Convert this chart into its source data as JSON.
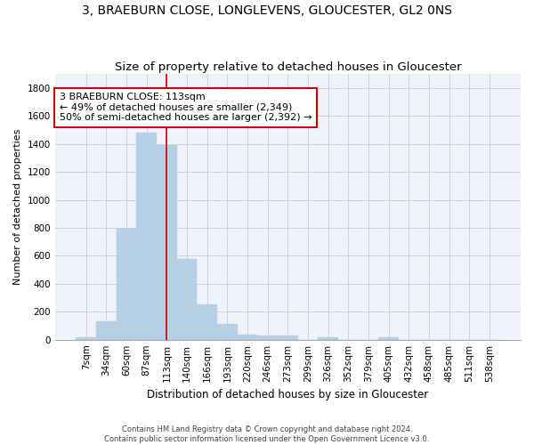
{
  "title": "3, BRAEBURN CLOSE, LONGLEVENS, GLOUCESTER, GL2 0NS",
  "subtitle": "Size of property relative to detached houses in Gloucester",
  "xlabel": "Distribution of detached houses by size in Gloucester",
  "ylabel": "Number of detached properties",
  "categories": [
    "7sqm",
    "34sqm",
    "60sqm",
    "87sqm",
    "113sqm",
    "140sqm",
    "166sqm",
    "193sqm",
    "220sqm",
    "246sqm",
    "273sqm",
    "299sqm",
    "326sqm",
    "352sqm",
    "379sqm",
    "405sqm",
    "432sqm",
    "458sqm",
    "485sqm",
    "511sqm",
    "538sqm"
  ],
  "values": [
    15,
    130,
    795,
    1480,
    1390,
    575,
    250,
    115,
    35,
    30,
    30,
    0,
    20,
    0,
    0,
    15,
    0,
    0,
    0,
    0,
    0
  ],
  "bar_color": "#b8cfe8",
  "bar_edgecolor": "#b8cfe8",
  "bar_width": 1.0,
  "vline_x": 4,
  "vline_color": "#cc0000",
  "annotation_text": "3 BRAEBURN CLOSE: 113sqm\n← 49% of detached houses are smaller (2,349)\n50% of semi-detached houses are larger (2,392) →",
  "annotation_box_edgecolor": "#cc0000",
  "annotation_box_facecolor": "#ffffff",
  "ylim": [
    0,
    1900
  ],
  "yticks": [
    0,
    200,
    400,
    600,
    800,
    1000,
    1200,
    1400,
    1600,
    1800
  ],
  "grid_color": "#cccccc",
  "background_color": "#eef2fa",
  "footer_text": "Contains HM Land Registry data © Crown copyright and database right 2024.\nContains public sector information licensed under the Open Government Licence v3.0.",
  "title_fontsize": 10,
  "subtitle_fontsize": 9.5,
  "xlabel_fontsize": 8.5,
  "ylabel_fontsize": 8,
  "tick_fontsize": 7.5,
  "annotation_fontsize": 8
}
